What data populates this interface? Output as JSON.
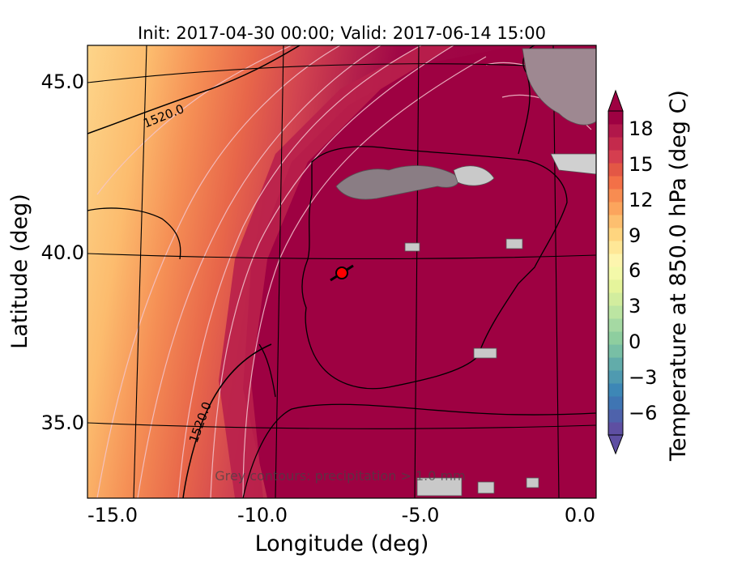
{
  "title": "Init: 2017-04-30 00:00; Valid: 2017-06-14 15:00",
  "xlabel": "Longitude (deg)",
  "ylabel": "Latitude (deg)",
  "x_ticks": [
    "-15.0",
    "-10.0",
    "-5.0",
    "0.0"
  ],
  "y_ticks": [
    "45.0",
    "40.0",
    "35.0"
  ],
  "colorbar": {
    "label": "Temperature at 850.0 hPa (deg C)",
    "ticks": [
      "18",
      "15",
      "12",
      "9",
      "6",
      "3",
      "0",
      "−3",
      "−6"
    ],
    "colors": [
      "#5e4fa2",
      "#4e62ab",
      "#3f75b3",
      "#3d87b6",
      "#4f9ab0",
      "#62acaa",
      "#78bfa5",
      "#8ece9f",
      "#a5d9a3",
      "#bce5a2",
      "#d2ed9e",
      "#e5f49b",
      "#f3f9a9",
      "#fdf5ae",
      "#fee797",
      "#fed57f",
      "#fdbf6f",
      "#fca55d",
      "#f88c51",
      "#f37047",
      "#e35745",
      "#d53e4f",
      "#c42a4c",
      "#b1174a",
      "#9e0142"
    ]
  },
  "annotations": {
    "contour_label_1": "1520.0",
    "contour_label_2": "1520.0",
    "footnote": "Grey contours: precipitation > 1.0 mm"
  },
  "map": {
    "extent_lon": [
      -16,
      0
    ],
    "extent_lat": [
      32.5,
      46
    ],
    "marker": {
      "lon": -7.6,
      "lat": 39.3,
      "color": "#ff0000"
    }
  }
}
